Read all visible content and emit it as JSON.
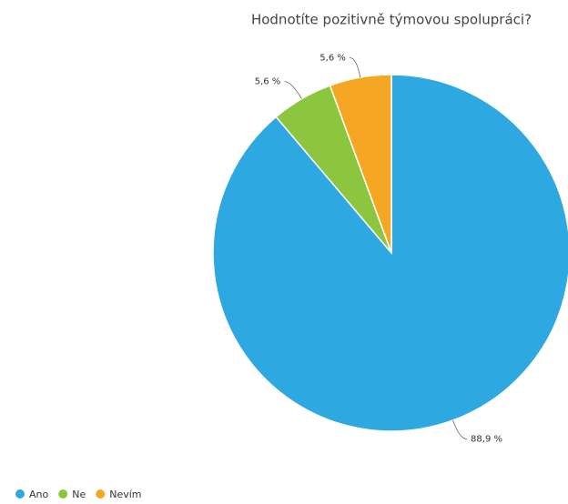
{
  "chart_data": {
    "type": "pie",
    "title": "Hodnotíte pozitivně týmovou spolupráci?",
    "categories": [
      "Ano",
      "Ne",
      "Nevím"
    ],
    "values": [
      88.9,
      5.6,
      5.6
    ],
    "value_labels": [
      "88,9 %",
      "5,6 %",
      "5,6 %"
    ],
    "colors": [
      "#2ea8e0",
      "#8cc63f",
      "#f5a623"
    ],
    "legend": "bottom-left"
  }
}
